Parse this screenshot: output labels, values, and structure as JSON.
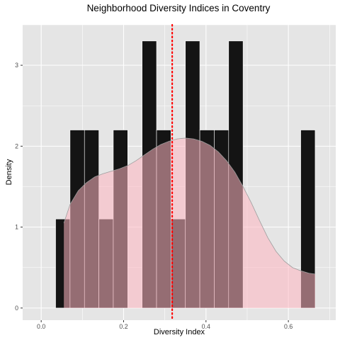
{
  "chart_data": {
    "type": "bar",
    "subtype": "histogram-with-density",
    "title": "Neighborhood Diversity Indices in Coventry",
    "xlabel": "Diversity Index",
    "ylabel": "Density",
    "xlim": [
      -0.045,
      0.715
    ],
    "ylim": [
      -0.15,
      3.5
    ],
    "x_ticks": [
      0.0,
      0.2,
      0.4,
      0.6
    ],
    "x_tick_labels": [
      "0.0",
      "0.2",
      "0.4",
      "0.6"
    ],
    "y_ticks": [
      0,
      1,
      2,
      3
    ],
    "y_tick_labels": [
      "0",
      "1",
      "2",
      "3"
    ],
    "grid": true,
    "bin_width": 0.035,
    "bins": [
      {
        "x0": 0.035,
        "x1": 0.07,
        "density": 1.1
      },
      {
        "x0": 0.07,
        "x1": 0.105,
        "density": 2.2
      },
      {
        "x0": 0.105,
        "x1": 0.14,
        "density": 2.2
      },
      {
        "x0": 0.14,
        "x1": 0.175,
        "density": 1.1
      },
      {
        "x0": 0.175,
        "x1": 0.21,
        "density": 2.2
      },
      {
        "x0": 0.21,
        "x1": 0.245,
        "density": 0
      },
      {
        "x0": 0.245,
        "x1": 0.28,
        "density": 3.3
      },
      {
        "x0": 0.28,
        "x1": 0.315,
        "density": 2.2
      },
      {
        "x0": 0.315,
        "x1": 0.35,
        "density": 1.1
      },
      {
        "x0": 0.35,
        "x1": 0.385,
        "density": 3.3
      },
      {
        "x0": 0.385,
        "x1": 0.42,
        "density": 2.2
      },
      {
        "x0": 0.42,
        "x1": 0.455,
        "density": 2.2
      },
      {
        "x0": 0.455,
        "x1": 0.49,
        "density": 3.3
      },
      {
        "x0": 0.49,
        "x1": 0.525,
        "density": 0
      },
      {
        "x0": 0.525,
        "x1": 0.56,
        "density": 0
      },
      {
        "x0": 0.56,
        "x1": 0.595,
        "density": 0
      },
      {
        "x0": 0.595,
        "x1": 0.63,
        "density": 0
      },
      {
        "x0": 0.63,
        "x1": 0.665,
        "density": 2.2
      }
    ],
    "density_curve": {
      "x": [
        0.055,
        0.07,
        0.09,
        0.11,
        0.13,
        0.15,
        0.17,
        0.19,
        0.21,
        0.23,
        0.25,
        0.27,
        0.29,
        0.31,
        0.33,
        0.35,
        0.37,
        0.39,
        0.41,
        0.43,
        0.45,
        0.47,
        0.49,
        0.51,
        0.53,
        0.55,
        0.57,
        0.59,
        0.61,
        0.63,
        0.65,
        0.665
      ],
      "y": [
        1.05,
        1.28,
        1.45,
        1.55,
        1.62,
        1.66,
        1.69,
        1.72,
        1.76,
        1.82,
        1.89,
        1.96,
        2.02,
        2.06,
        2.09,
        2.1,
        2.09,
        2.06,
        2.01,
        1.93,
        1.82,
        1.68,
        1.5,
        1.3,
        1.08,
        0.87,
        0.7,
        0.58,
        0.5,
        0.46,
        0.43,
        0.42
      ]
    },
    "reference_line": {
      "x": 0.318,
      "style": "dotted"
    },
    "colors": {
      "panel_background": "#e5e5e5",
      "grid": "#ffffff",
      "bar_fill": "#141414",
      "bar_outline": "#ffffff",
      "density_fill": "#ffb6c1",
      "density_fill_opacity": 0.55,
      "density_outline": "#9e9e9e",
      "reference_line": "#ff0000",
      "tick_text": "#4d4d4d"
    }
  }
}
